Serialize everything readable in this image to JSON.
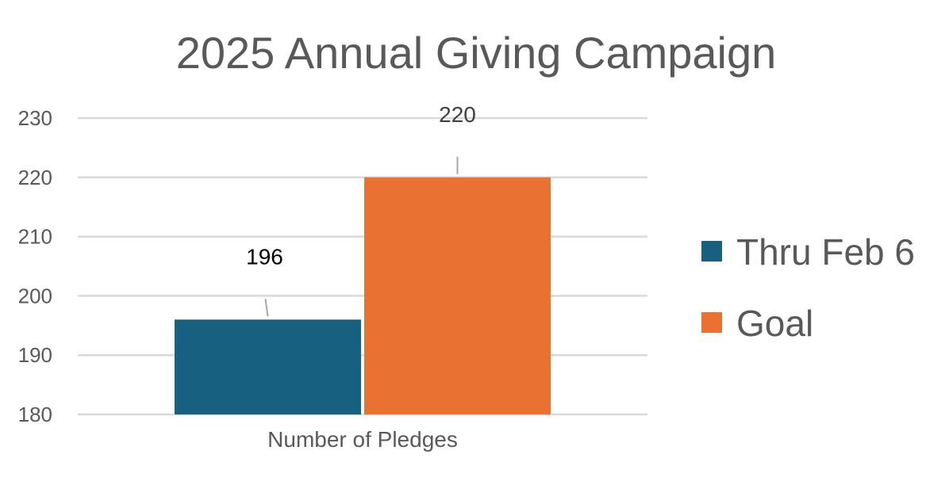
{
  "chart_data": {
    "type": "bar",
    "title": "2025 Annual Giving Campaign",
    "categories": [
      "Number of Pledges"
    ],
    "series": [
      {
        "name": "Thru Feb 6",
        "values": [
          196
        ],
        "color": "#17607f"
      },
      {
        "name": "Goal",
        "values": [
          220
        ],
        "color": "#e97132"
      }
    ],
    "ylim": [
      180,
      230
    ],
    "yticks": [
      180,
      190,
      200,
      210,
      220,
      230
    ],
    "grid": true,
    "legend": "right",
    "data_labels": true,
    "text_color": "#595959",
    "gridline_color": "#d9d9d9"
  }
}
